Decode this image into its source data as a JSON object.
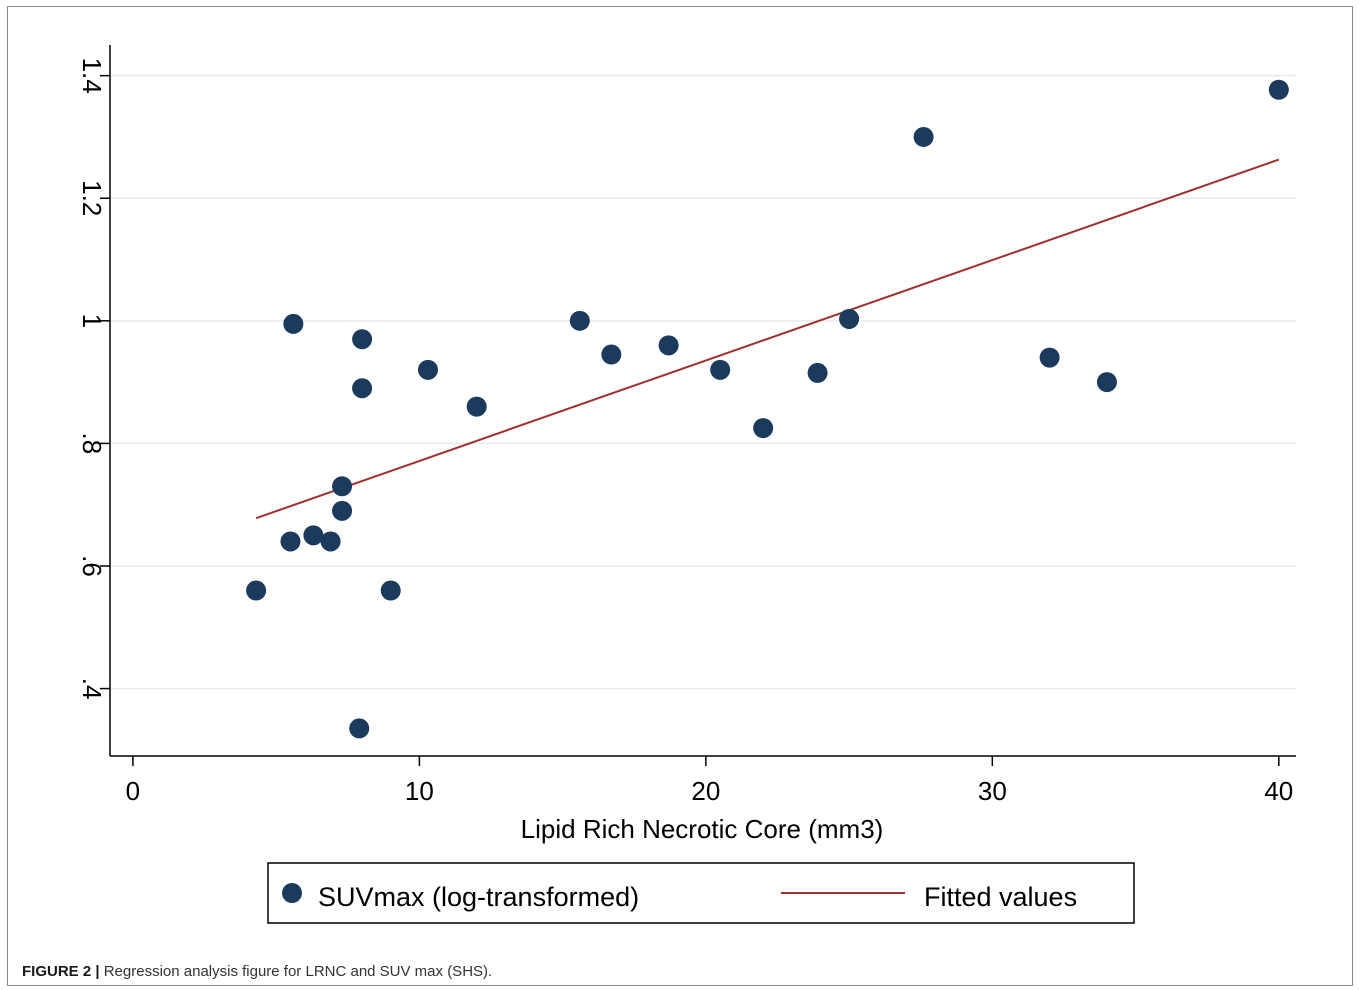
{
  "chart_data": {
    "type": "scatter",
    "title": "",
    "xlabel": "Lipid Rich Necrotic Core (mm3)",
    "ylabel": "",
    "xlim": [
      -0.8,
      40.6
    ],
    "ylim": [
      0.29,
      1.45
    ],
    "x_ticks": [
      0,
      10,
      20,
      30,
      40
    ],
    "x_tick_labels": [
      "0",
      "10",
      "20",
      "30",
      "40"
    ],
    "y_ticks": [
      0.4,
      0.6,
      0.8,
      1.0,
      1.2,
      1.4
    ],
    "y_tick_labels": [
      ".4",
      ".6",
      ".8",
      "1",
      "1.2",
      "1.4"
    ],
    "grid": true,
    "legend_position": "bottom",
    "series": [
      {
        "name": "SUVmax (log-transformed)",
        "kind": "scatter",
        "color": "#1b3a5c",
        "points": [
          {
            "x": 4.3,
            "y": 0.56
          },
          {
            "x": 5.5,
            "y": 0.64
          },
          {
            "x": 5.6,
            "y": 0.995
          },
          {
            "x": 6.3,
            "y": 0.65
          },
          {
            "x": 6.9,
            "y": 0.64
          },
          {
            "x": 7.3,
            "y": 0.73
          },
          {
            "x": 7.3,
            "y": 0.69
          },
          {
            "x": 7.9,
            "y": 0.335
          },
          {
            "x": 8.0,
            "y": 0.97
          },
          {
            "x": 8.0,
            "y": 0.89
          },
          {
            "x": 9.0,
            "y": 0.56
          },
          {
            "x": 10.3,
            "y": 0.92
          },
          {
            "x": 12.0,
            "y": 0.86
          },
          {
            "x": 15.6,
            "y": 1.0
          },
          {
            "x": 16.7,
            "y": 0.945
          },
          {
            "x": 18.7,
            "y": 0.96
          },
          {
            "x": 20.5,
            "y": 0.92
          },
          {
            "x": 22.0,
            "y": 0.825
          },
          {
            "x": 23.9,
            "y": 0.915
          },
          {
            "x": 25.0,
            "y": 1.003
          },
          {
            "x": 27.6,
            "y": 1.3
          },
          {
            "x": 32.0,
            "y": 0.94
          },
          {
            "x": 34.0,
            "y": 0.9
          },
          {
            "x": 40.0,
            "y": 1.377
          }
        ]
      },
      {
        "name": "Fitted values",
        "kind": "line",
        "color": "#a0302d",
        "points": [
          {
            "x": 4.3,
            "y": 0.678
          },
          {
            "x": 40.0,
            "y": 1.263
          }
        ]
      }
    ]
  },
  "caption": {
    "label": "FIGURE 2 |",
    "text": " Regression analysis figure for LRNC and SUV max (SHS)."
  }
}
